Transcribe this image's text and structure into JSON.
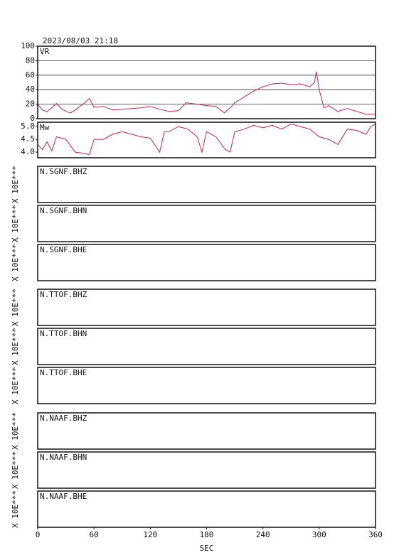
{
  "header": "2023/08/03 21:18",
  "chart_data": [
    {
      "type": "line",
      "label": "VR",
      "xlim": [
        0,
        360
      ],
      "ylim": [
        0,
        100
      ],
      "yticks": [
        0,
        20,
        40,
        60,
        80,
        100
      ],
      "grid": true,
      "x": [
        0,
        5,
        10,
        15,
        20,
        25,
        30,
        35,
        40,
        45,
        50,
        55,
        60,
        70,
        80,
        90,
        100,
        110,
        120,
        130,
        140,
        150,
        158,
        170,
        180,
        190,
        199,
        205,
        210,
        220,
        230,
        240,
        250,
        260,
        270,
        280,
        285,
        290,
        295,
        297,
        300,
        303,
        305,
        310,
        320,
        330,
        340,
        350,
        360
      ],
      "series": [
        {
          "name": "VR",
          "color": "#d0204a",
          "values": [
            20,
            12,
            10,
            15,
            21,
            14,
            10,
            8,
            12,
            17,
            22,
            28,
            16,
            17,
            12,
            13,
            14,
            15,
            17,
            13,
            10,
            11,
            22,
            20,
            18,
            17,
            8,
            15,
            22,
            30,
            38,
            44,
            48,
            49,
            47,
            48,
            46,
            44,
            50,
            65,
            40,
            25,
            15,
            18,
            10,
            14,
            10,
            6,
            6
          ]
        }
      ]
    },
    {
      "type": "line",
      "label": "Mw",
      "xlim": [
        0,
        360
      ],
      "ylim": [
        3.78,
        5.17
      ],
      "yticks": [
        {
          "value": 4,
          "label": "4.0"
        },
        4.5,
        {
          "value": 5,
          "label": "5.0"
        }
      ],
      "grid": false,
      "x": [
        0,
        5,
        10,
        15,
        20,
        30,
        40,
        50,
        55,
        60,
        70,
        80,
        90,
        100,
        110,
        120,
        130,
        135,
        140,
        150,
        160,
        170,
        175,
        180,
        190,
        200,
        205,
        210,
        220,
        230,
        240,
        250,
        260,
        270,
        280,
        290,
        300,
        310,
        320,
        330,
        340,
        350,
        355,
        360
      ],
      "series": [
        {
          "name": "Mw",
          "color": "#d0204a",
          "values": [
            4.3,
            4.1,
            4.4,
            4.05,
            4.6,
            4.5,
            4.0,
            3.95,
            3.9,
            4.5,
            4.5,
            4.7,
            4.8,
            4.7,
            4.6,
            4.55,
            4.0,
            4.8,
            4.8,
            5.0,
            4.9,
            4.6,
            4.0,
            4.8,
            4.6,
            4.1,
            4.0,
            4.8,
            4.9,
            5.05,
            4.95,
            5.05,
            4.9,
            5.1,
            5.0,
            4.9,
            4.6,
            4.5,
            4.3,
            4.9,
            4.85,
            4.7,
            5.0,
            5.1
          ]
        }
      ]
    },
    {
      "type": "line",
      "label": "N.SGNF.BHZ",
      "ylabel": "X 10E***",
      "xlim": [
        0,
        360
      ],
      "series": []
    },
    {
      "type": "line",
      "label": "N.SGNF.BHN",
      "ylabel": "X 10E***",
      "xlim": [
        0,
        360
      ],
      "series": []
    },
    {
      "type": "line",
      "label": "N.SGNF.BHE",
      "ylabel": "X 10E***",
      "xlim": [
        0,
        360
      ],
      "series": []
    },
    {
      "type": "line",
      "label": "N.TTOF.BHZ",
      "ylabel": "X 10E***",
      "xlim": [
        0,
        360
      ],
      "series": []
    },
    {
      "type": "line",
      "label": "N.TTOF.BHN",
      "ylabel": "X 10E***",
      "xlim": [
        0,
        360
      ],
      "series": []
    },
    {
      "type": "line",
      "label": "N.TTOF.BHE",
      "ylabel": "X 10E***",
      "xlim": [
        0,
        360
      ],
      "series": []
    },
    {
      "type": "line",
      "label": "N.NAAF.BHZ",
      "ylabel": "X 10E***",
      "xlim": [
        0,
        360
      ],
      "series": []
    },
    {
      "type": "line",
      "label": "N.NAAF.BHN",
      "ylabel": "X 10E***",
      "xlim": [
        0,
        360
      ],
      "series": []
    },
    {
      "type": "line",
      "label": "N.NAAF.BHE",
      "ylabel": "X 10E***",
      "xlim": [
        0,
        360
      ],
      "series": [],
      "xlabel": "SEC",
      "xticks": [
        0,
        60,
        120,
        180,
        240,
        300,
        360
      ]
    }
  ]
}
